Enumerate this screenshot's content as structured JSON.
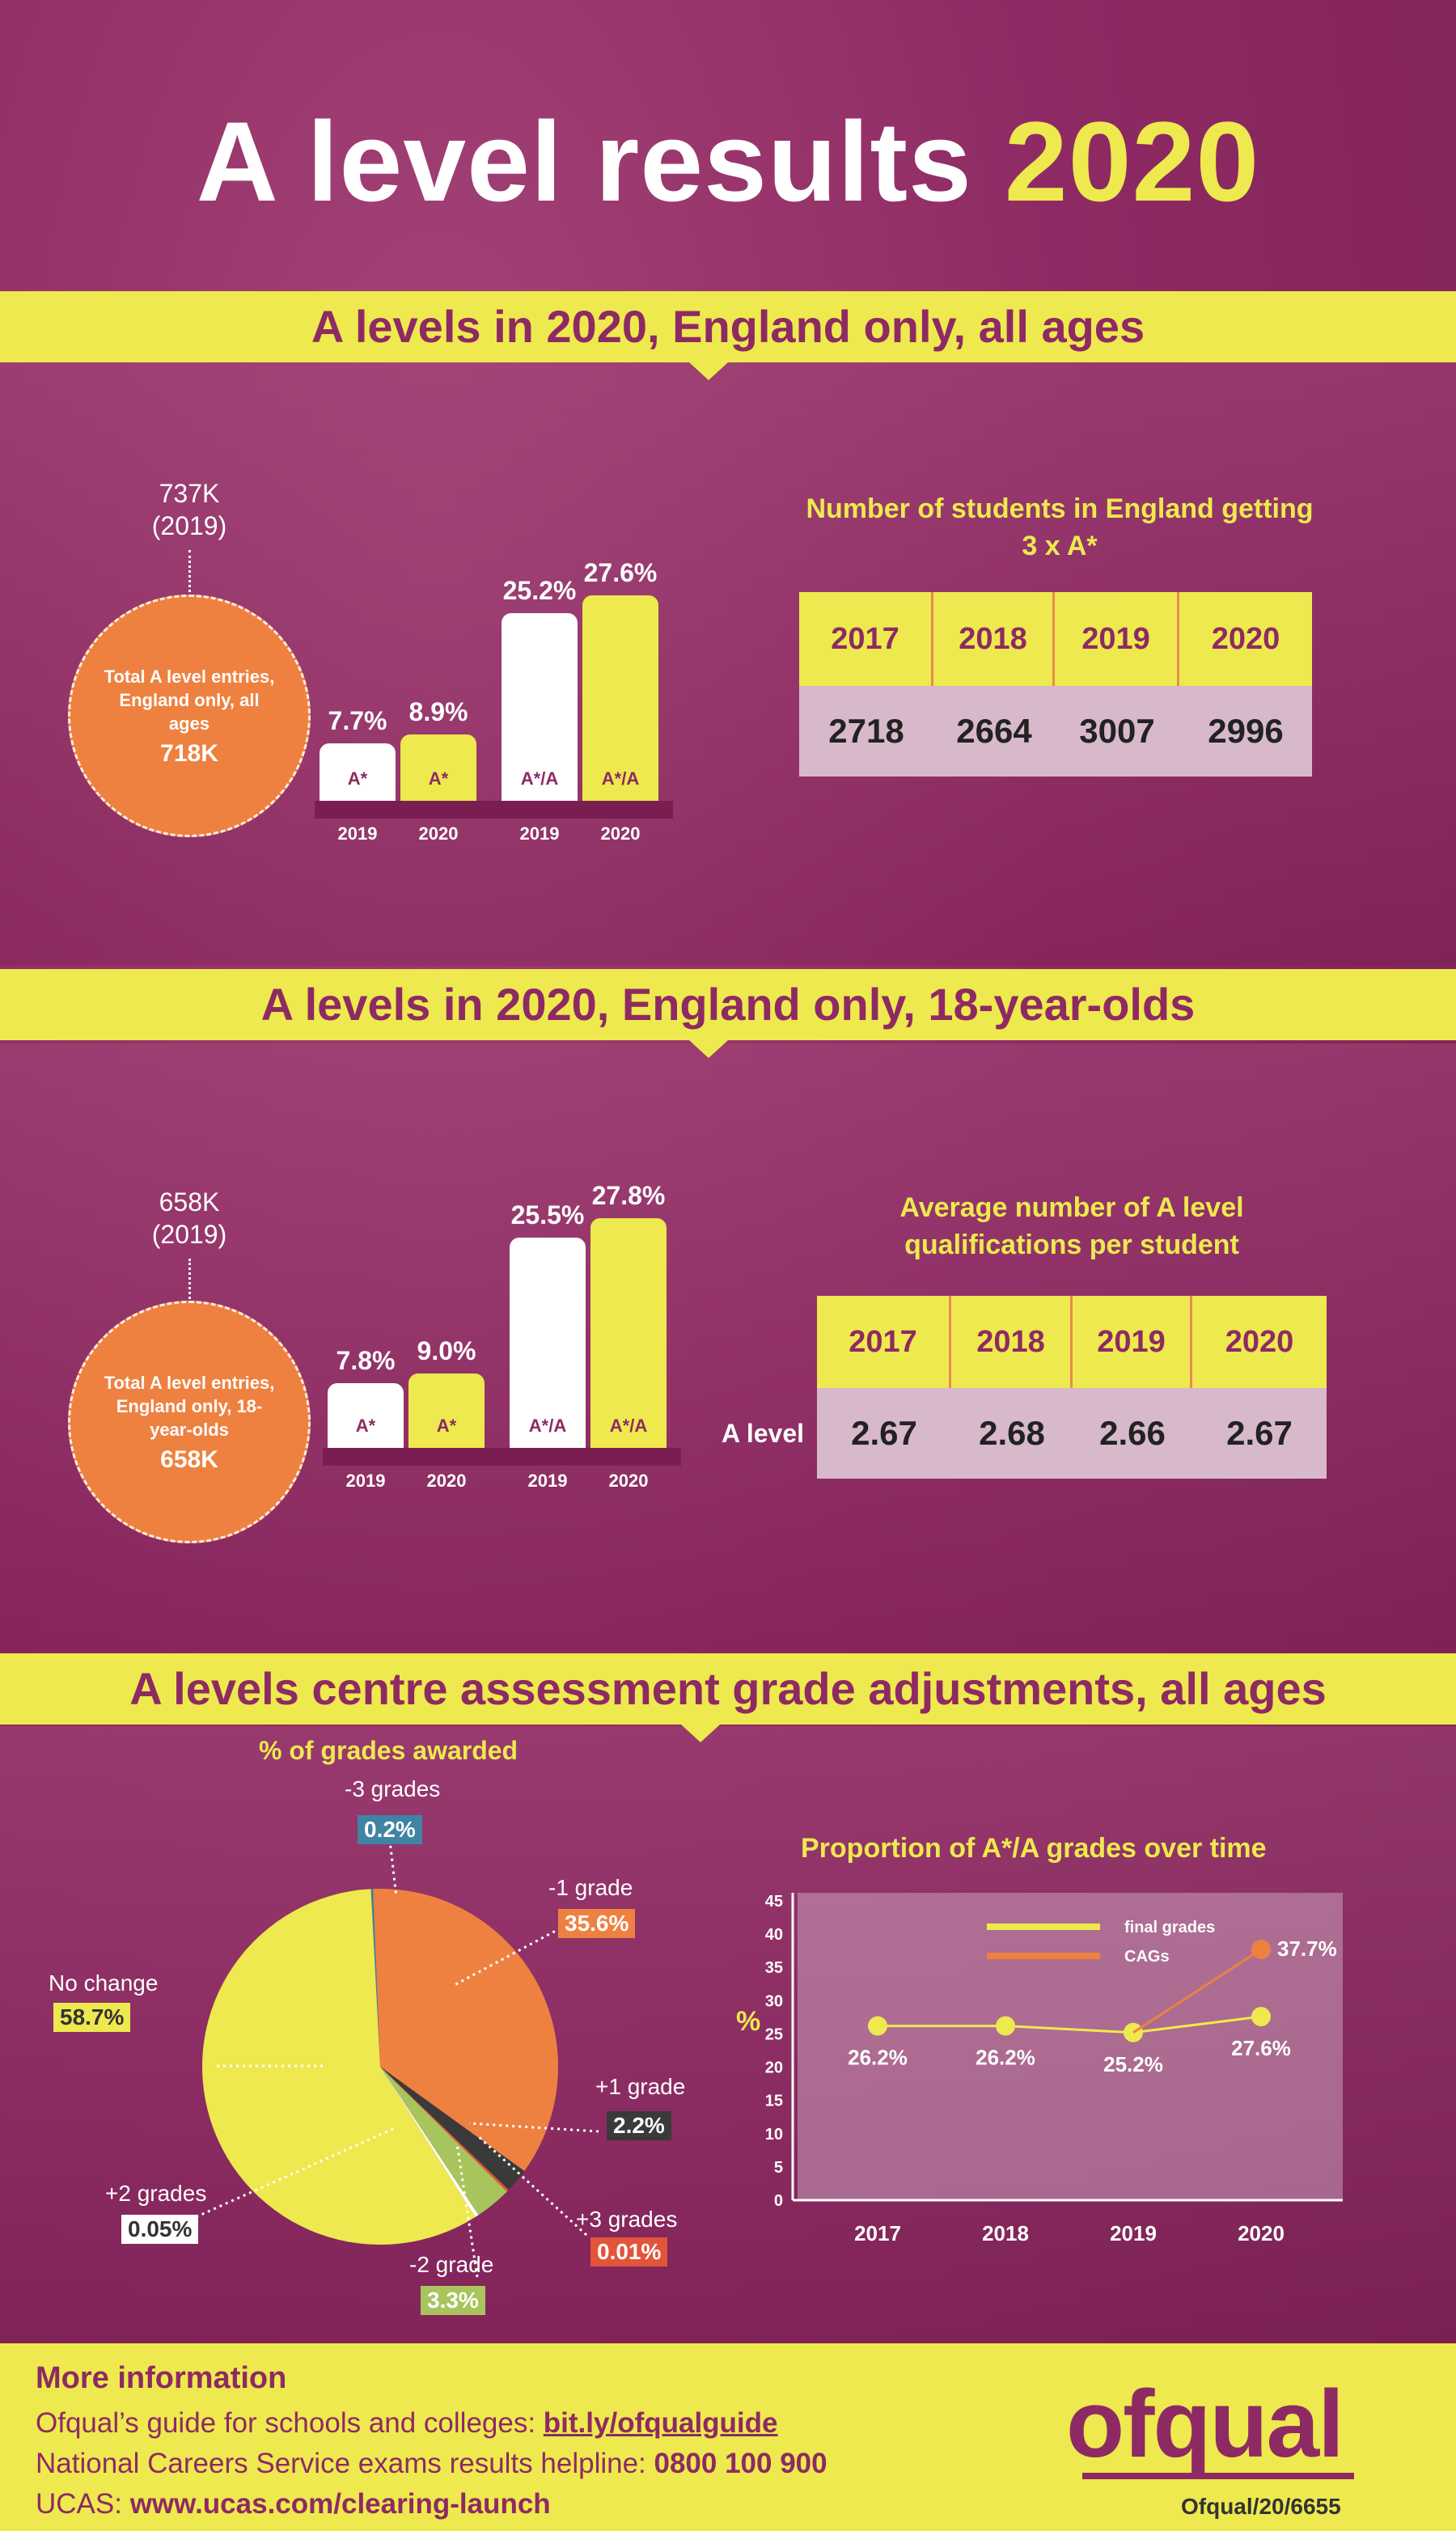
{
  "title": {
    "main": "A level results",
    "year": "2020"
  },
  "section1": {
    "heading": "A levels in 2020, England only, all ages",
    "prev": "737K",
    "prev_year": "(2019)",
    "circle_text": "Total A level entries, England only, all ages",
    "circle_value": "718K",
    "bars": [
      {
        "value": "7.7%",
        "pct": 7.7,
        "grade": "A*",
        "year": "2019",
        "color": "white"
      },
      {
        "value": "8.9%",
        "pct": 8.9,
        "grade": "A*",
        "year": "2020",
        "color": "yellow"
      },
      {
        "value": "25.2%",
        "pct": 25.2,
        "grade": "A*/A",
        "year": "2019",
        "color": "white"
      },
      {
        "value": "27.6%",
        "pct": 27.6,
        "grade": "A*/A",
        "year": "2020",
        "color": "yellow"
      }
    ],
    "table_title": "Number of students in England getting 3 x A*",
    "table_headers": [
      "2017",
      "2018",
      "2019",
      "2020"
    ],
    "table_values": [
      "2718",
      "2664",
      "3007",
      "2996"
    ]
  },
  "section2": {
    "heading": "A levels in 2020, England only, 18-year-olds",
    "prev": "658K",
    "prev_year": "(2019)",
    "circle_text": "Total A level entries, England only, 18-year-olds",
    "circle_value": "658K",
    "bars": [
      {
        "value": "7.8%",
        "pct": 7.8,
        "grade": "A*",
        "year": "2019",
        "color": "white"
      },
      {
        "value": "9.0%",
        "pct": 9.0,
        "grade": "A*",
        "year": "2020",
        "color": "yellow"
      },
      {
        "value": "25.5%",
        "pct": 25.5,
        "grade": "A*/A",
        "year": "2019",
        "color": "white"
      },
      {
        "value": "27.8%",
        "pct": 27.8,
        "grade": "A*/A",
        "year": "2020",
        "color": "yellow"
      }
    ],
    "table_title": "Average number of A level qualifications per student",
    "table_headers": [
      "2017",
      "2018",
      "2019",
      "2020"
    ],
    "row_label": "A level",
    "table_values": [
      "2.67",
      "2.68",
      "2.66",
      "2.67"
    ]
  },
  "section3": {
    "heading": "A levels centre assessment grade adjustments, all ages",
    "pie_title": "% of grades awarded",
    "pie": [
      {
        "label": "No change",
        "value": "58.7%",
        "pct": 58.7,
        "color": "#eee94e",
        "chip_bg": "#eee94e",
        "chip_fg": "#333"
      },
      {
        "label": "-3 grades",
        "value": "0.2%",
        "pct": 0.2,
        "color": "#3f84a2",
        "chip_bg": "#3f84a2",
        "chip_fg": "#fff"
      },
      {
        "label": "-1 grade",
        "value": "35.6%",
        "pct": 35.6,
        "color": "#ee8140",
        "chip_bg": "#ee8140",
        "chip_fg": "#fff"
      },
      {
        "label": "+1 grade",
        "value": "2.2%",
        "pct": 2.2,
        "color": "#3a3a3a",
        "chip_bg": "#3a3a3a",
        "chip_fg": "#fff"
      },
      {
        "label": "+3 grades",
        "value": "0.01%",
        "pct": 0.01,
        "color": "#e2553a",
        "chip_bg": "#e2553a",
        "chip_fg": "#fff"
      },
      {
        "label": "-2 grade",
        "value": "3.3%",
        "pct": 3.3,
        "color": "#a8c45c",
        "chip_bg": "#a8c45c",
        "chip_fg": "#fff"
      },
      {
        "label": "+2 grades",
        "value": "0.05%",
        "pct": 0.05,
        "color": "#ffffff",
        "chip_bg": "#ffffff",
        "chip_fg": "#333"
      }
    ]
  },
  "chart_data": {
    "type": "line",
    "title": "Proportion of A*/A grades over time",
    "ylabel": "%",
    "ylim": [
      0,
      45
    ],
    "yticks": [
      "0",
      "5",
      "10",
      "15",
      "20",
      "25",
      "30",
      "35",
      "40",
      "45"
    ],
    "categories": [
      "2017",
      "2018",
      "2019",
      "2020"
    ],
    "series": [
      {
        "name": "final grades",
        "values": [
          26.2,
          26.2,
          25.2,
          27.6
        ],
        "labels": [
          "26.2%",
          "26.2%",
          "25.2%",
          "27.6%"
        ],
        "color": "#eee94e"
      },
      {
        "name": "CAGs",
        "values": [
          null,
          null,
          25.2,
          37.7
        ],
        "labels": [
          "",
          "",
          "",
          "37.7%"
        ],
        "color": "#ee8140"
      }
    ]
  },
  "footer": {
    "heading": "More information",
    "line1_text": "Ofqual’s guide for schools and colleges: ",
    "line1_link": "bit.ly/ofqualguide",
    "line2_text": "National Careers Service exams results helpline: ",
    "line2_bold": "0800 100 900",
    "line3_text": "UCAS: ",
    "line3_bold": "www.ucas.com/clearing-launch",
    "logo": "ofqual",
    "ref": "Ofqual/20/6655"
  }
}
